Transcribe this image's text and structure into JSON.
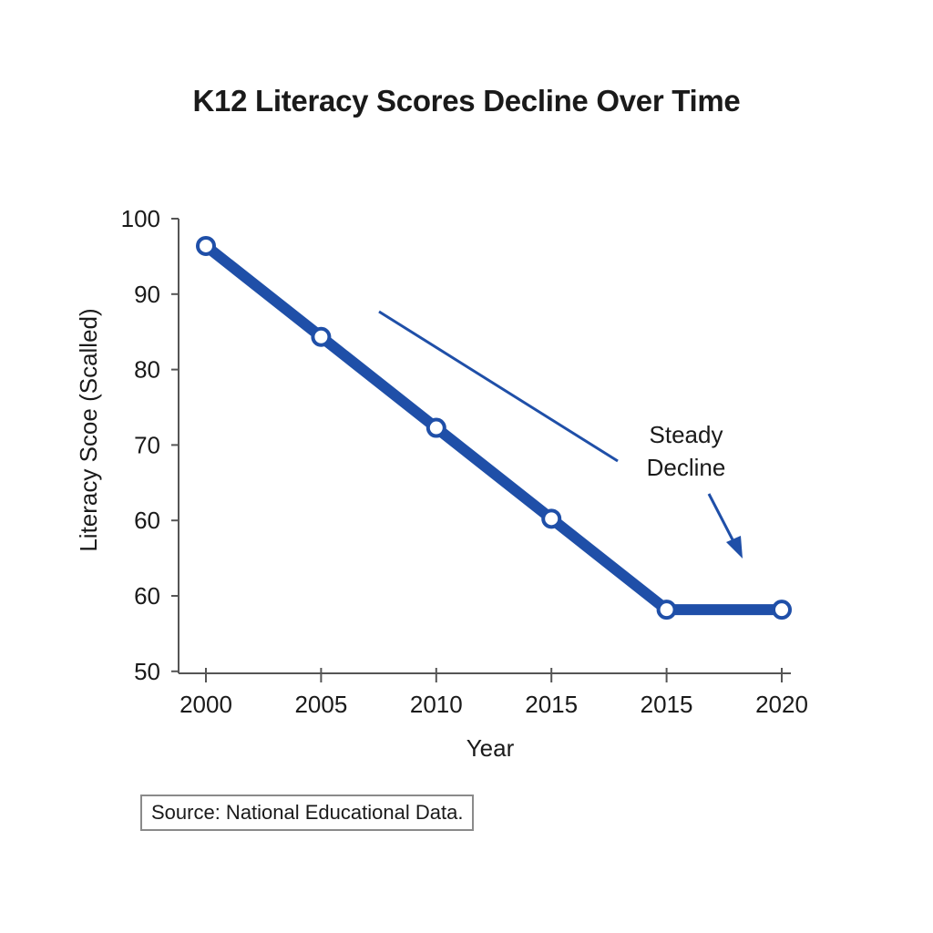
{
  "chart_data": {
    "type": "line",
    "title": "K12 Literacy Scores Decline Over Time",
    "xlabel": "Year",
    "ylabel": "Literacy Scoe (Scalled)",
    "x_tick_labels": [
      "2000",
      "2005",
      "2010",
      "2015",
      "2015",
      "2020"
    ],
    "y_tick_labels": [
      "100",
      "90",
      "80",
      "70",
      "60",
      "60",
      "50"
    ],
    "ylim": [
      50,
      100
    ],
    "grid": false,
    "legend": "none",
    "series": [
      {
        "values": [
          97,
          87,
          77,
          67,
          57,
          57
        ]
      }
    ],
    "annotation": {
      "line1": "Steady",
      "line2": "Decline"
    },
    "source": "Source: National Educational Data.",
    "colors": {
      "line": "#1f4fa8",
      "marker_fill": "#ffffff",
      "axis": "#555555"
    }
  }
}
